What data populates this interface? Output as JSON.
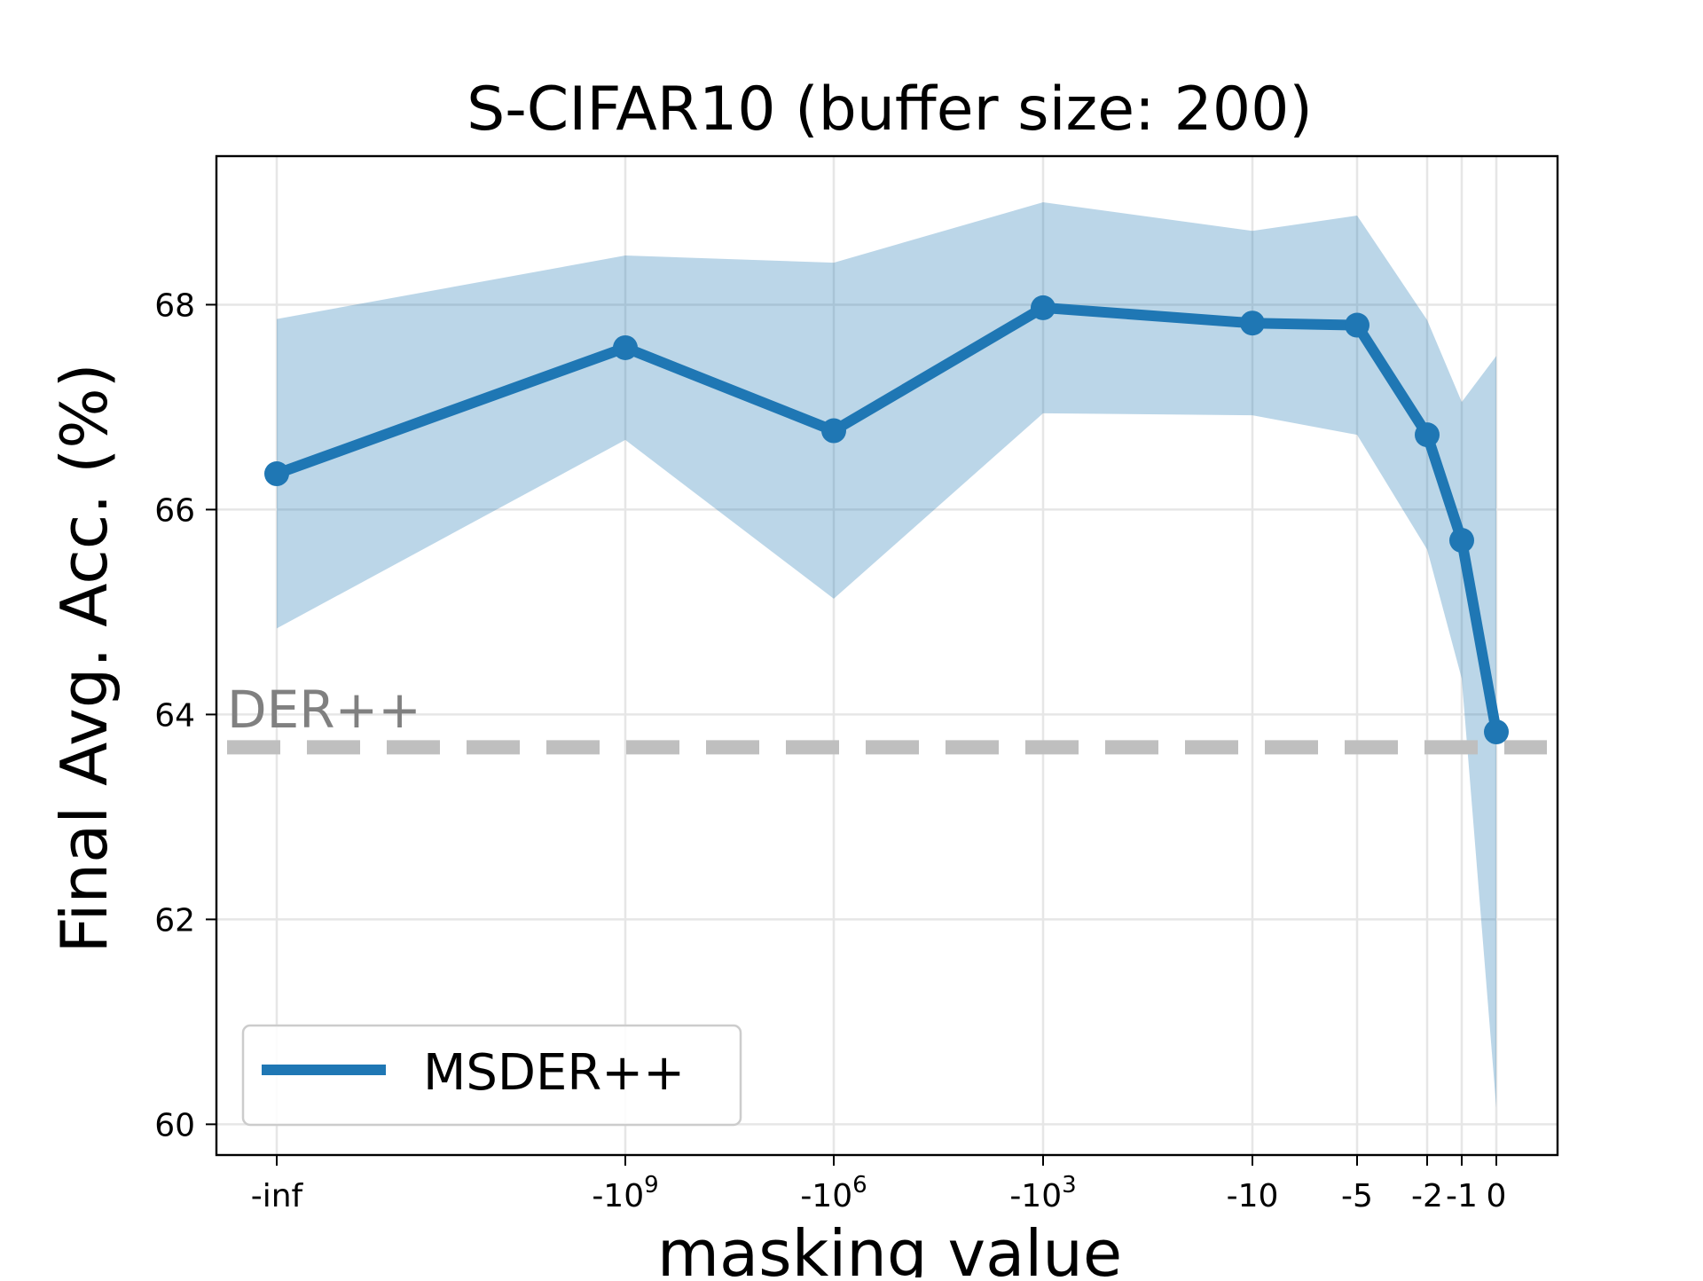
{
  "chart_data": {
    "type": "line",
    "title": "S-CIFAR10 (buffer size: 200)",
    "xlabel": "masking value",
    "ylabel": "Final Avg. Acc. (%)",
    "ylim": [
      59.7,
      69.45
    ],
    "x_ticks": [
      {
        "base": "-inf",
        "sup": ""
      },
      {
        "base": "-10",
        "sup": "9"
      },
      {
        "base": "-10",
        "sup": "6"
      },
      {
        "base": "-10",
        "sup": "3"
      },
      {
        "base": "-10",
        "sup": ""
      },
      {
        "base": "-5",
        "sup": ""
      },
      {
        "base": "-2",
        "sup": ""
      },
      {
        "base": "-1",
        "sup": ""
      },
      {
        "base": "0",
        "sup": ""
      }
    ],
    "x": [
      "-inf",
      "-10^9",
      "-10^6",
      "-10^3",
      "-10",
      "-5",
      "-2",
      "-1",
      "0"
    ],
    "y_ticks": [
      "60",
      "62",
      "64",
      "66",
      "68"
    ],
    "series": [
      {
        "name": "MSDER++",
        "color": "#1f77b4",
        "values": [
          66.35,
          67.58,
          66.77,
          67.97,
          67.82,
          67.8,
          66.73,
          65.7,
          63.83
        ],
        "upper": [
          67.86,
          68.48,
          68.41,
          69.0,
          68.72,
          68.87,
          67.85,
          67.05,
          67.5
        ],
        "lower": [
          64.84,
          66.68,
          65.13,
          66.94,
          66.92,
          66.73,
          65.61,
          64.35,
          60.16
        ],
        "band_color": "#1f77b4"
      }
    ],
    "reference_line": {
      "label": "DER++",
      "value": 63.68,
      "color": "#bfbfbf",
      "label_color": "#808080"
    },
    "legend": {
      "position": "lower-left",
      "entries": [
        "MSDER++"
      ]
    },
    "grid": true
  }
}
